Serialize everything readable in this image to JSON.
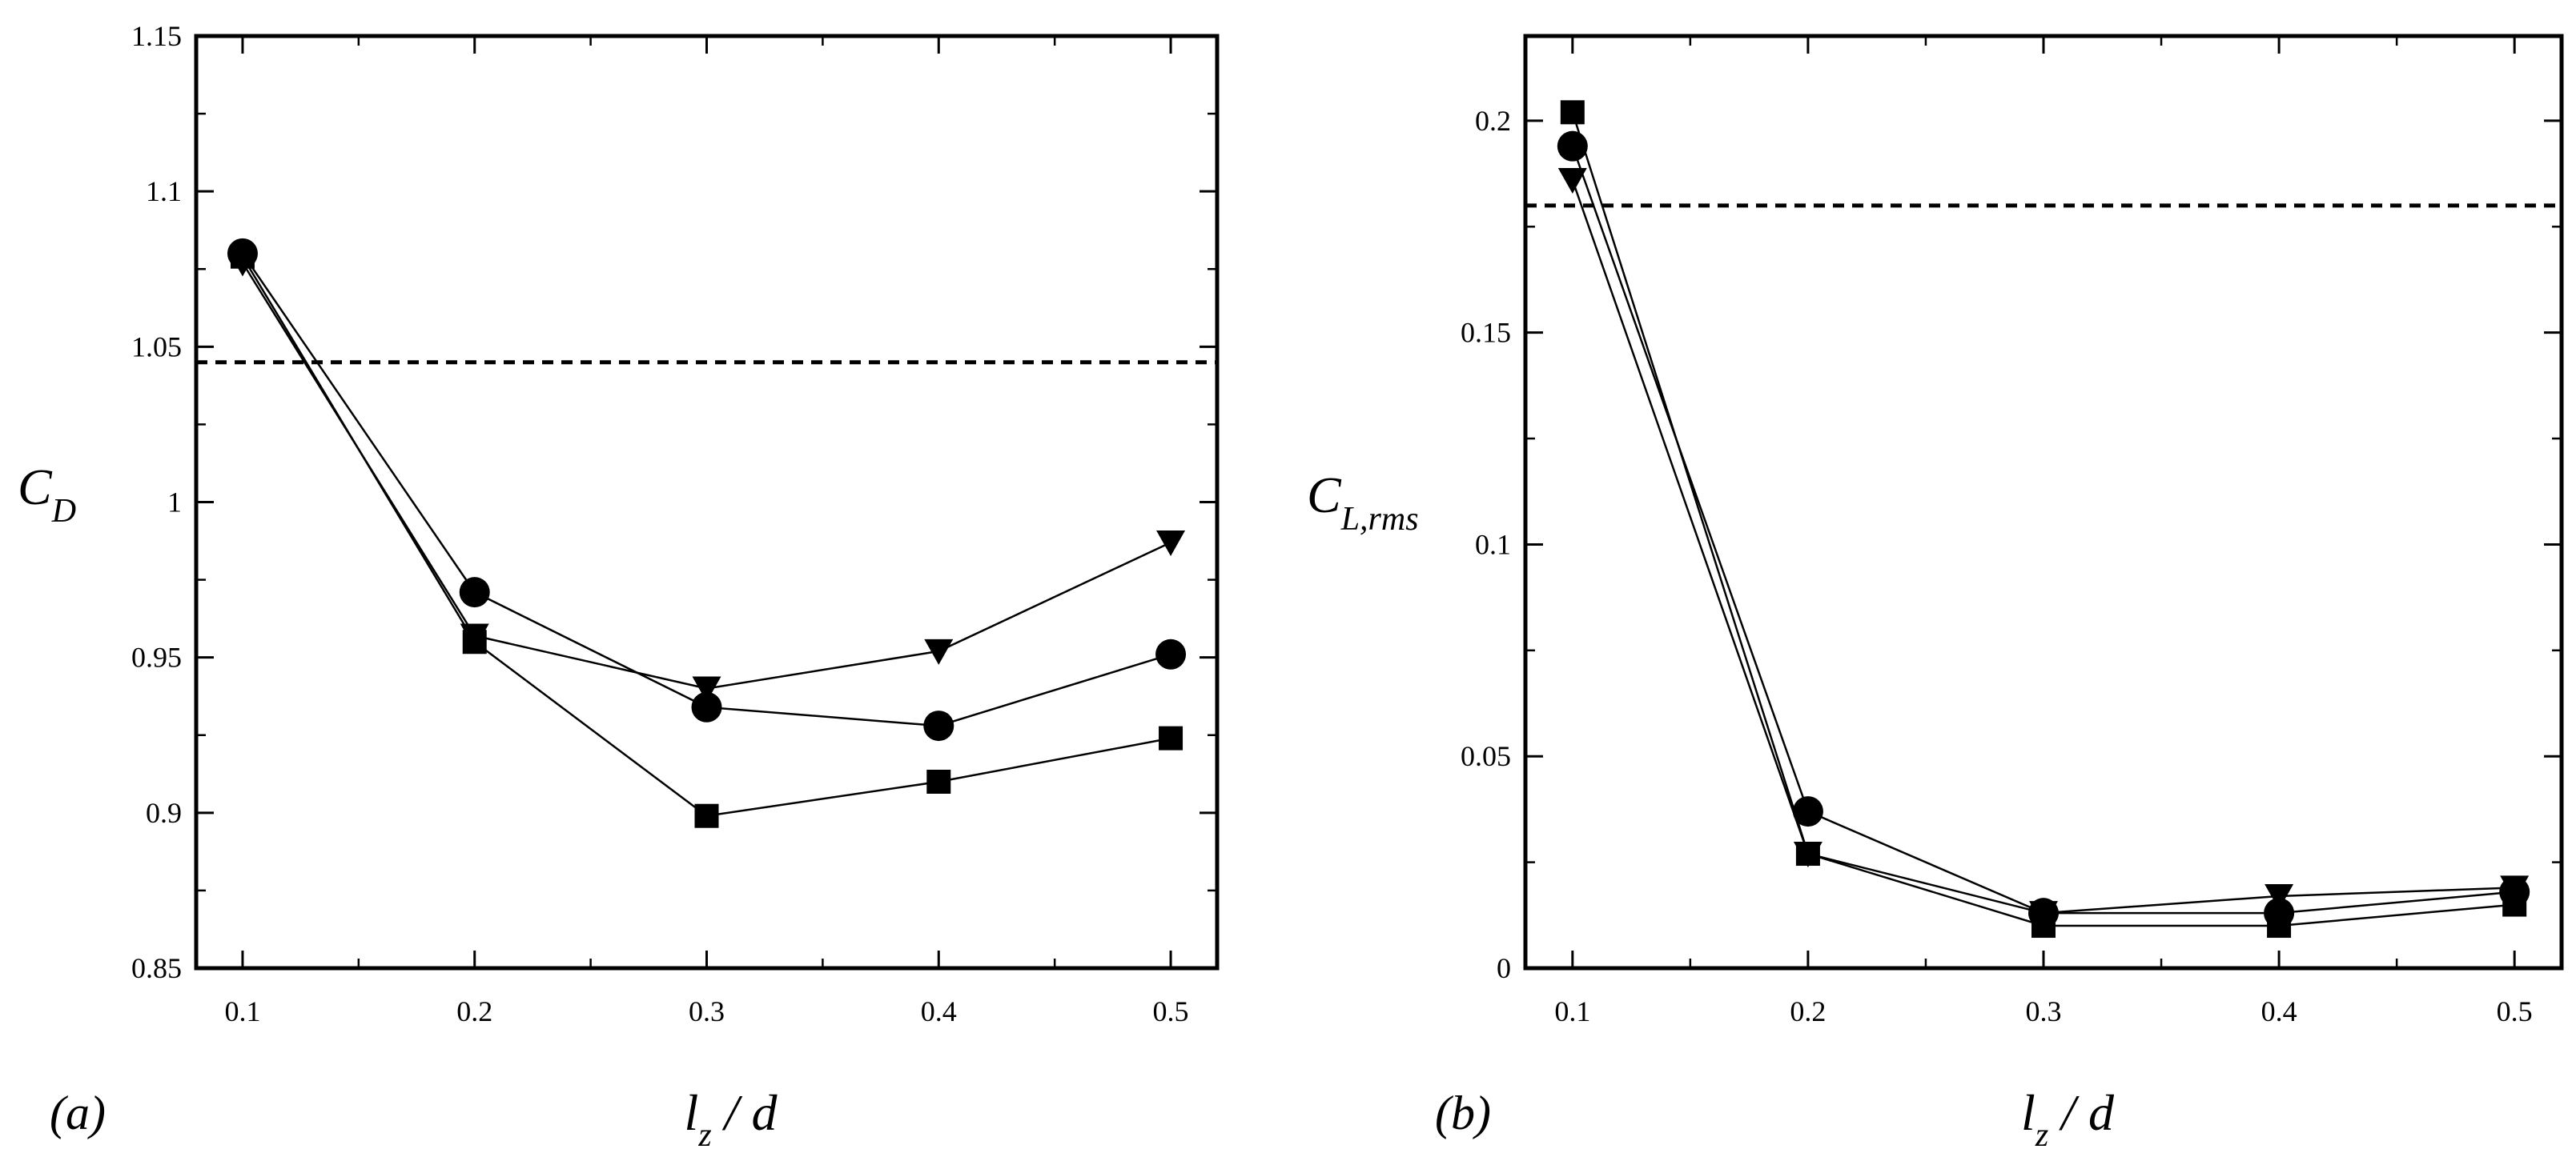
{
  "chart_data": [
    {
      "type": "line",
      "panel_label": "(a)",
      "xlabel": {
        "main": "l",
        "sub": "z",
        "rest": " / d"
      },
      "ylabel": {
        "main": "C",
        "sub": "D"
      },
      "xlim": [
        0.08,
        0.52
      ],
      "ylim": [
        0.85,
        1.15
      ],
      "xticks": [
        0.1,
        0.2,
        0.3,
        0.4,
        0.5
      ],
      "xtick_labels": [
        "0.1",
        "0.2",
        "0.3",
        "0.4",
        "0.5"
      ],
      "yticks": [
        0.85,
        0.9,
        0.95,
        1.0,
        1.05,
        1.1,
        1.15
      ],
      "ytick_labels": [
        "0.85",
        "0.9",
        "0.95",
        "1",
        "1.05",
        "1.1",
        "1.15"
      ],
      "x": [
        0.1,
        0.2,
        0.3,
        0.4,
        0.5
      ],
      "series": [
        {
          "name": "triangle",
          "marker": "triangle-down",
          "values": [
            1.077,
            0.957,
            0.94,
            0.952,
            0.987
          ]
        },
        {
          "name": "circle",
          "marker": "circle",
          "values": [
            1.08,
            0.971,
            0.934,
            0.928,
            0.951
          ]
        },
        {
          "name": "square",
          "marker": "square",
          "values": [
            1.079,
            0.955,
            0.899,
            0.91,
            0.924
          ]
        }
      ],
      "reference_line": {
        "y": 1.045,
        "style": "dashed"
      }
    },
    {
      "type": "line",
      "panel_label": "(b)",
      "xlabel": {
        "main": "l",
        "sub": "z",
        "rest": " / d"
      },
      "ylabel": {
        "main": "C",
        "sub": "L,rms"
      },
      "xlim": [
        0.08,
        0.52
      ],
      "ylim": [
        0,
        0.22
      ],
      "xticks": [
        0.1,
        0.2,
        0.3,
        0.4,
        0.5
      ],
      "xtick_labels": [
        "0.1",
        "0.2",
        "0.3",
        "0.4",
        "0.5"
      ],
      "yticks": [
        0,
        0.05,
        0.1,
        0.15,
        0.2
      ],
      "ytick_labels": [
        "0",
        "0.05",
        "0.1",
        "0.15",
        "0.2"
      ],
      "x": [
        0.1,
        0.2,
        0.3,
        0.4,
        0.5
      ],
      "series": [
        {
          "name": "triangle",
          "marker": "triangle-down",
          "values": [
            0.186,
            0.027,
            0.013,
            0.017,
            0.019
          ]
        },
        {
          "name": "circle",
          "marker": "circle",
          "values": [
            0.194,
            0.037,
            0.013,
            0.013,
            0.018
          ]
        },
        {
          "name": "square",
          "marker": "square",
          "values": [
            0.202,
            0.027,
            0.01,
            0.01,
            0.015
          ]
        }
      ],
      "reference_line": {
        "y": 0.18,
        "style": "dashed"
      }
    }
  ]
}
